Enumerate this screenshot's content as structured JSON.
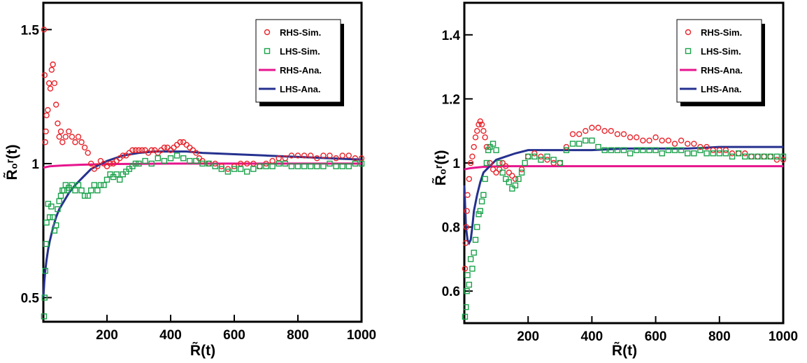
{
  "chart_data": [
    {
      "type": "scatter",
      "xlabel": "R̃(t)",
      "ylabel": "R̃₀ʳ(t)",
      "xlim": [
        0,
        1000
      ],
      "ylim": [
        0.41,
        1.6
      ],
      "xticks": [
        "200",
        "400",
        "600",
        "800",
        "1000"
      ],
      "xtick_values": [
        200,
        400,
        600,
        800,
        1000
      ],
      "yticks": [
        "0.5",
        "1",
        "1.5"
      ],
      "ytick_values": [
        0.5,
        1.0,
        1.5
      ],
      "legend_position": "top-right",
      "series": [
        {
          "name": "RHS-Sim.",
          "kind": "points",
          "marker": "circle",
          "color": "#e8232a",
          "x": [
            2,
            4,
            6,
            8,
            10,
            14,
            18,
            22,
            26,
            30,
            35,
            40,
            45,
            50,
            55,
            60,
            70,
            80,
            90,
            100,
            110,
            120,
            130,
            140,
            150,
            160,
            170,
            180,
            190,
            200,
            210,
            220,
            230,
            240,
            250,
            260,
            270,
            280,
            290,
            300,
            310,
            320,
            330,
            340,
            350,
            360,
            370,
            380,
            390,
            400,
            410,
            420,
            430,
            440,
            450,
            460,
            470,
            480,
            490,
            500,
            520,
            540,
            560,
            580,
            600,
            620,
            640,
            660,
            680,
            700,
            720,
            740,
            760,
            780,
            800,
            820,
            840,
            860,
            880,
            900,
            920,
            940,
            960,
            980,
            1000
          ],
          "y": [
            1.5,
            1.33,
            1.08,
            1.12,
            1.18,
            1.2,
            1.3,
            1.28,
            1.35,
            1.37,
            1.3,
            1.22,
            1.15,
            1.1,
            1.12,
            1.08,
            1.1,
            1.12,
            1.1,
            1.08,
            1.1,
            1.08,
            1.06,
            1.04,
            1.0,
            0.98,
            0.99,
            1.01,
            1.0,
            0.99,
            1.0,
            1.0,
            1.01,
            1.02,
            1.03,
            1.03,
            1.04,
            1.05,
            1.05,
            1.05,
            1.05,
            1.05,
            1.04,
            1.05,
            1.05,
            1.04,
            1.05,
            1.06,
            1.06,
            1.05,
            1.06,
            1.07,
            1.08,
            1.08,
            1.07,
            1.06,
            1.05,
            1.04,
            1.02,
            1.01,
            1.0,
            1.0,
            0.99,
            0.98,
            0.99,
            1.0,
            1.0,
            1.0,
            0.99,
            1.0,
            1.01,
            1.02,
            1.02,
            1.03,
            1.03,
            1.03,
            1.03,
            1.02,
            1.03,
            1.03,
            1.02,
            1.03,
            1.03,
            1.02,
            1.02
          ]
        },
        {
          "name": "LHS-Sim.",
          "kind": "points",
          "marker": "square",
          "color": "#1aa24a",
          "x": [
            2,
            4,
            6,
            8,
            10,
            15,
            20,
            25,
            30,
            35,
            40,
            45,
            50,
            55,
            60,
            65,
            70,
            75,
            80,
            90,
            100,
            110,
            120,
            130,
            140,
            150,
            160,
            170,
            180,
            190,
            200,
            210,
            220,
            230,
            240,
            250,
            260,
            270,
            280,
            290,
            300,
            320,
            340,
            360,
            380,
            400,
            420,
            440,
            460,
            480,
            500,
            520,
            540,
            560,
            580,
            600,
            620,
            640,
            660,
            680,
            700,
            720,
            740,
            760,
            780,
            800,
            820,
            840,
            860,
            880,
            900,
            920,
            940,
            960,
            980,
            1000
          ],
          "y": [
            0.43,
            0.5,
            0.6,
            0.7,
            0.78,
            0.85,
            0.8,
            0.84,
            0.8,
            0.75,
            0.77,
            0.83,
            0.86,
            0.88,
            0.9,
            0.9,
            0.92,
            0.9,
            0.91,
            0.92,
            0.9,
            0.92,
            0.9,
            0.88,
            0.88,
            0.9,
            0.92,
            0.9,
            0.92,
            0.92,
            0.94,
            0.96,
            0.95,
            0.96,
            0.94,
            0.96,
            0.97,
            0.98,
            0.99,
            1.0,
            1.0,
            1.01,
            1.0,
            1.02,
            1.01,
            1.02,
            1.03,
            1.02,
            1.01,
            1.01,
            1.0,
            1.0,
            0.99,
            0.98,
            0.97,
            0.98,
            0.98,
            0.97,
            0.98,
            0.99,
            0.99,
            0.99,
            1.0,
            1.0,
            0.99,
            0.99,
            0.99,
            0.99,
            0.99,
            0.99,
            1.0,
            0.99,
            0.99,
            0.99,
            1.0,
            1.0
          ]
        },
        {
          "name": "RHS-Ana.",
          "kind": "line",
          "color": "#e6158d",
          "x": [
            0,
            20,
            60,
            120,
            200,
            400,
            1000
          ],
          "y": [
            0.985,
            0.99,
            0.993,
            0.996,
            0.998,
            1.0,
            1.0
          ]
        },
        {
          "name": "LHS-Ana.",
          "kind": "line",
          "color": "#25318f",
          "x": [
            0,
            3,
            6,
            10,
            15,
            20,
            30,
            40,
            50,
            60,
            80,
            100,
            125,
            150,
            200,
            250,
            300,
            350,
            400,
            450,
            500,
            600,
            700,
            800,
            900,
            1000
          ],
          "y": [
            0.5,
            0.56,
            0.6,
            0.64,
            0.68,
            0.71,
            0.76,
            0.8,
            0.83,
            0.85,
            0.89,
            0.92,
            0.95,
            0.98,
            1.01,
            1.03,
            1.04,
            1.045,
            1.045,
            1.045,
            1.04,
            1.035,
            1.03,
            1.025,
            1.02,
            1.015
          ]
        }
      ]
    },
    {
      "type": "scatter",
      "xlabel": "R̃(t)",
      "ylabel": "R̃₀ʳ(t)",
      "xlim": [
        0,
        1000
      ],
      "ylim": [
        0.5,
        1.5
      ],
      "xticks": [
        "200",
        "400",
        "600",
        "800",
        "1000"
      ],
      "xtick_values": [
        200,
        400,
        600,
        800,
        1000
      ],
      "yticks": [
        "0.6",
        "0.8",
        "1",
        "1.2",
        "1.4"
      ],
      "ytick_values": [
        0.6,
        0.8,
        1.0,
        1.2,
        1.4
      ],
      "legend_position": "top-right",
      "series": [
        {
          "name": "RHS-Sim.",
          "kind": "points",
          "marker": "circle",
          "color": "#e8232a",
          "x": [
            2,
            4,
            6,
            8,
            10,
            15,
            20,
            25,
            30,
            35,
            40,
            45,
            50,
            55,
            60,
            65,
            70,
            80,
            90,
            100,
            110,
            120,
            130,
            140,
            150,
            160,
            180,
            200,
            220,
            240,
            260,
            280,
            300,
            320,
            340,
            360,
            380,
            400,
            420,
            440,
            460,
            480,
            500,
            520,
            540,
            560,
            580,
            600,
            620,
            640,
            660,
            680,
            700,
            720,
            740,
            760,
            780,
            800,
            820,
            840,
            860,
            880,
            900,
            920,
            940,
            960,
            980,
            1000
          ],
          "y": [
            0.67,
            0.75,
            0.8,
            0.85,
            0.9,
            0.95,
            1.0,
            1.02,
            1.05,
            1.08,
            1.1,
            1.12,
            1.13,
            1.12,
            1.1,
            1.08,
            1.05,
            1.0,
            0.98,
            0.97,
            0.98,
            1.0,
            0.99,
            0.97,
            0.96,
            0.95,
            0.98,
            1.02,
            1.03,
            1.02,
            1.01,
            1.0,
            1.0,
            1.05,
            1.09,
            1.09,
            1.1,
            1.11,
            1.11,
            1.1,
            1.1,
            1.09,
            1.09,
            1.08,
            1.08,
            1.07,
            1.07,
            1.08,
            1.07,
            1.07,
            1.06,
            1.07,
            1.06,
            1.06,
            1.05,
            1.05,
            1.04,
            1.04,
            1.04,
            1.03,
            1.03,
            1.03,
            1.02,
            1.02,
            1.02,
            1.02,
            1.01,
            1.01
          ]
        },
        {
          "name": "LHS-Sim.",
          "kind": "points",
          "marker": "square",
          "color": "#1aa24a",
          "x": [
            2,
            5,
            8,
            10,
            15,
            20,
            25,
            30,
            35,
            40,
            45,
            50,
            55,
            60,
            65,
            70,
            75,
            80,
            90,
            100,
            110,
            120,
            130,
            140,
            150,
            160,
            170,
            180,
            190,
            200,
            220,
            240,
            260,
            280,
            300,
            320,
            340,
            360,
            380,
            400,
            420,
            440,
            460,
            480,
            500,
            520,
            540,
            560,
            580,
            600,
            620,
            640,
            660,
            680,
            700,
            720,
            740,
            760,
            780,
            800,
            820,
            840,
            860,
            880,
            900,
            920,
            940,
            960,
            980,
            1000
          ],
          "y": [
            0.52,
            0.55,
            0.6,
            0.65,
            0.62,
            0.7,
            0.67,
            0.72,
            0.76,
            0.8,
            0.84,
            0.85,
            0.88,
            0.9,
            0.95,
            1.0,
            1.04,
            1.05,
            1.06,
            1.04,
            1.0,
            0.97,
            0.95,
            0.94,
            0.92,
            0.93,
            0.95,
            0.97,
            1.0,
            1.02,
            1.02,
            1.01,
            1.02,
            1.01,
            1.0,
            1.04,
            1.06,
            1.06,
            1.07,
            1.07,
            1.05,
            1.04,
            1.04,
            1.04,
            1.04,
            1.03,
            1.04,
            1.04,
            1.04,
            1.04,
            1.03,
            1.04,
            1.04,
            1.04,
            1.03,
            1.03,
            1.04,
            1.03,
            1.03,
            1.03,
            1.03,
            1.02,
            1.03,
            1.02,
            1.02,
            1.02,
            1.02,
            1.02,
            1.02,
            1.02
          ]
        },
        {
          "name": "RHS-Ana.",
          "kind": "line",
          "color": "#e6158d",
          "x": [
            0,
            20,
            60,
            120,
            200,
            400,
            1000
          ],
          "y": [
            0.98,
            0.984,
            0.988,
            0.99,
            0.99,
            0.99,
            0.99
          ]
        },
        {
          "name": "LHS-Ana.",
          "kind": "line",
          "color": "#25318f",
          "x": [
            0,
            5,
            10,
            15,
            20,
            25,
            30,
            40,
            50,
            60,
            80,
            100,
            130,
            160,
            200,
            300,
            400,
            500,
            600,
            700,
            800,
            900,
            1000
          ],
          "y": [
            0.93,
            0.8,
            0.76,
            0.75,
            0.76,
            0.8,
            0.85,
            0.9,
            0.94,
            0.97,
            0.99,
            1.01,
            1.02,
            1.03,
            1.04,
            1.04,
            1.04,
            1.045,
            1.045,
            1.045,
            1.05,
            1.05,
            1.05
          ]
        }
      ]
    }
  ]
}
